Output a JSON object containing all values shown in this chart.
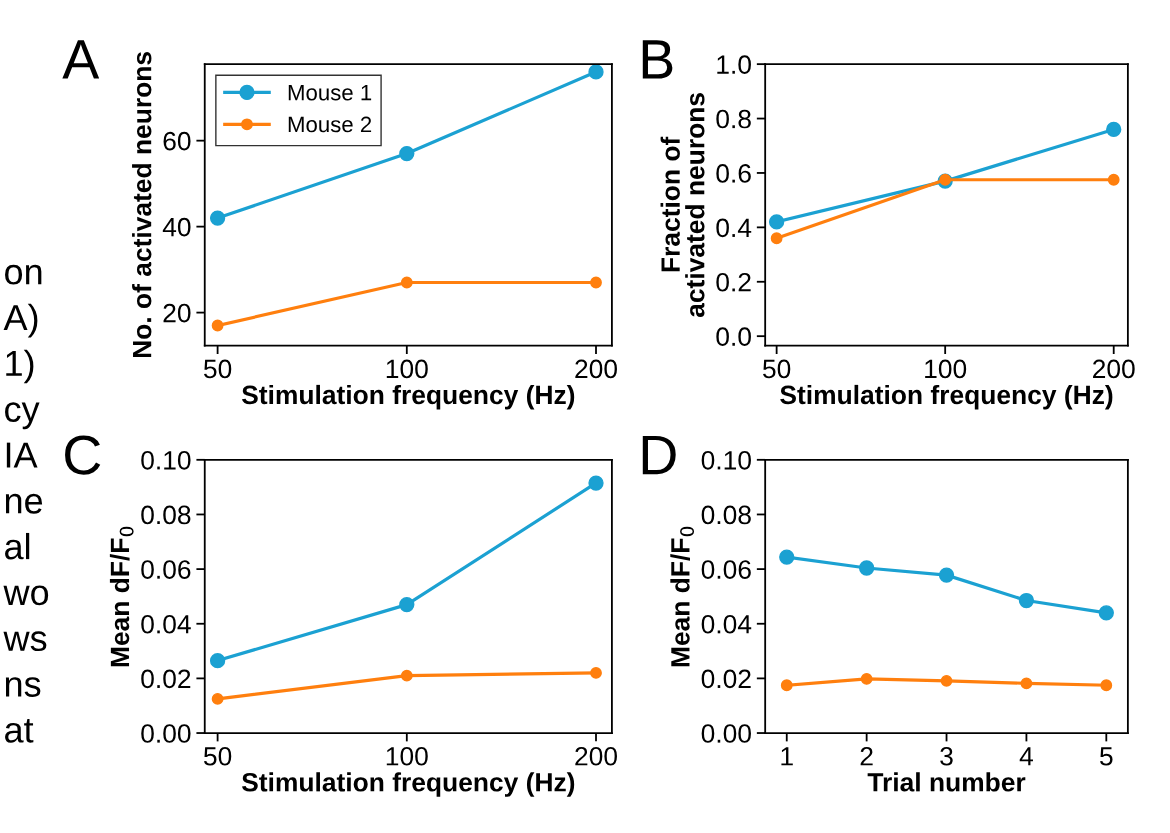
{
  "chart_data": [
    {
      "type": "other",
      "annotations": [
        "on",
        "A)",
        "1)",
        "cy",
        "IA",
        "ne",
        "al",
        "wo",
        "ws",
        "ns",
        "at"
      ]
    },
    {
      "type": "line",
      "title": "A",
      "xlabel": "Stimulation frequency (Hz)",
      "ylabel": "No. of activated neurons",
      "log": "x",
      "x": [
        50,
        100,
        200
      ],
      "xlim": [
        47.7,
        212
      ],
      "xticks": [
        50,
        100,
        200
      ],
      "ylim": [
        12.3,
        77.8
      ],
      "yticks": [
        20,
        40,
        60
      ],
      "marker": "circle",
      "legend": "top left",
      "series": [
        {
          "name": "Mouse 1",
          "color": "#1ba1d2",
          "values": [
            42,
            57,
            76
          ]
        },
        {
          "name": "Mouse 2",
          "color": "#ff7f0e",
          "values": [
            17,
            27,
            27
          ]
        }
      ]
    },
    {
      "type": "line",
      "title": "B",
      "xlabel": "Stimulation frequency (Hz)",
      "ylabel": "Fraction of\nactivated neurons",
      "log": "x",
      "x": [
        50,
        100,
        200
      ],
      "xlim": [
        47.7,
        212
      ],
      "xticks": [
        50,
        100,
        200
      ],
      "ylim": [
        -0.035,
        1.0
      ],
      "yticks": [
        {
          "value": 0,
          "label": "0.0"
        },
        0.2,
        0.4,
        0.6,
        0.8,
        {
          "value": 1,
          "label": "1.0"
        }
      ],
      "marker": "circle",
      "series": [
        {
          "color": "#1ba1d2",
          "values": [
            0.42,
            0.57,
            0.76
          ]
        },
        {
          "color": "#ff7f0e",
          "values": [
            0.36,
            0.575,
            0.575
          ]
        }
      ]
    },
    {
      "type": "line",
      "title": "C",
      "xlabel": "Stimulation frequency (Hz)",
      "ylabel": "Mean dF/F$_{0}$",
      "log": "x",
      "x": [
        50,
        100,
        200
      ],
      "xlim": [
        47.7,
        212
      ],
      "xticks": [
        50,
        100,
        200
      ],
      "ylim": [
        0,
        0.1
      ],
      "yticks": [
        {
          "value": 0,
          "label": "0.00"
        },
        {
          "value": 0.02,
          "label": "0.02"
        },
        {
          "value": 0.04,
          "label": "0.04"
        },
        {
          "value": 0.06,
          "label": "0.06"
        },
        {
          "value": 0.08,
          "label": "0.08"
        },
        {
          "value": 0.1,
          "label": "0.10"
        }
      ],
      "marker": "circle",
      "series": [
        {
          "color": "#1ba1d2",
          "values": [
            0.0265,
            0.047,
            0.0915
          ]
        },
        {
          "color": "#ff7f0e",
          "values": [
            0.0125,
            0.021,
            0.022
          ]
        }
      ]
    },
    {
      "type": "line",
      "title": "D",
      "xlabel": "Trial number",
      "ylabel": "Mean dF/F$_{0}$",
      "x": [
        1,
        2,
        3,
        4,
        5
      ],
      "xlim": [
        0.73,
        5.27
      ],
      "xticks": [
        1,
        2,
        3,
        4,
        5
      ],
      "ylim": [
        0,
        0.1
      ],
      "yticks": [
        {
          "value": 0,
          "label": "0.00"
        },
        {
          "value": 0.02,
          "label": "0.02"
        },
        {
          "value": 0.04,
          "label": "0.04"
        },
        {
          "value": 0.06,
          "label": "0.06"
        },
        {
          "value": 0.08,
          "label": "0.08"
        },
        {
          "value": 0.1,
          "label": "0.10"
        }
      ],
      "marker": "circle",
      "series": [
        {
          "color": "#1ba1d2",
          "values": [
            0.0644,
            0.0604,
            0.0578,
            0.0485,
            0.044
          ]
        },
        {
          "color": "#ff7f0e",
          "values": [
            0.0175,
            0.0198,
            0.0191,
            0.0182,
            0.0175
          ]
        }
      ]
    }
  ]
}
